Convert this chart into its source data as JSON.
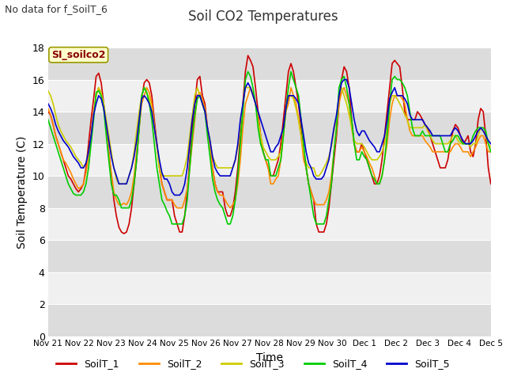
{
  "title": "Soil CO2 Temperatures",
  "subtitle": "No data for f_SoilT_6",
  "xlabel": "Time",
  "ylabel": "Soil Temperature (C)",
  "annotation": "SI_soilco2",
  "ylim": [
    0,
    18
  ],
  "yticks": [
    0,
    2,
    4,
    6,
    8,
    10,
    12,
    14,
    16,
    18
  ],
  "xtick_labels": [
    "Nov 21",
    "Nov 22",
    "Nov 23",
    "Nov 24",
    "Nov 25",
    "Nov 26",
    "Nov 27",
    "Nov 28",
    "Nov 29",
    "Nov 30",
    "Dec 1",
    "Dec 2",
    "Dec 3",
    "Dec 4",
    "Dec 5"
  ],
  "series_colors": {
    "SoilT_1": "#cc0000",
    "SoilT_2": "#ff8c00",
    "SoilT_3": "#cccc00",
    "SoilT_4": "#00cc00",
    "SoilT_5": "#0000cc"
  },
  "background_color": "#ffffff",
  "plot_bg_light": "#f0f0f0",
  "plot_bg_dark": "#dcdcdc",
  "grid_color": "#ffffff",
  "band_count": 9,
  "SoilT_1": [
    14.0,
    13.8,
    13.2,
    12.5,
    12.0,
    11.5,
    11.0,
    10.5,
    10.0,
    9.8,
    9.5,
    9.2,
    9.0,
    9.2,
    9.5,
    10.5,
    12.0,
    13.5,
    14.8,
    16.2,
    16.4,
    15.8,
    14.5,
    13.0,
    11.5,
    10.0,
    8.5,
    7.5,
    6.8,
    6.5,
    6.4,
    6.5,
    7.0,
    8.0,
    9.5,
    11.0,
    13.0,
    14.8,
    15.8,
    16.0,
    15.8,
    15.0,
    13.5,
    12.0,
    10.5,
    9.5,
    9.0,
    8.5,
    8.5,
    8.5,
    7.5,
    7.0,
    6.5,
    6.5,
    7.5,
    9.0,
    11.0,
    13.0,
    14.5,
    16.0,
    16.2,
    15.0,
    14.5,
    13.0,
    12.0,
    10.5,
    9.5,
    9.0,
    9.0,
    9.0,
    8.0,
    7.5,
    7.5,
    8.0,
    9.0,
    10.5,
    12.5,
    14.5,
    16.5,
    17.5,
    17.2,
    16.8,
    15.5,
    14.0,
    12.5,
    11.5,
    11.0,
    10.5,
    10.0,
    10.0,
    10.5,
    11.0,
    12.0,
    13.5,
    15.0,
    16.5,
    17.0,
    16.5,
    15.5,
    14.5,
    13.0,
    11.5,
    10.5,
    9.5,
    9.0,
    8.5,
    7.0,
    6.5,
    6.5,
    6.5,
    7.0,
    8.0,
    9.5,
    11.0,
    12.5,
    14.5,
    16.0,
    16.8,
    16.5,
    15.5,
    13.5,
    12.0,
    11.5,
    11.5,
    12.0,
    11.5,
    11.0,
    10.5,
    10.0,
    9.5,
    9.5,
    10.0,
    11.0,
    12.5,
    14.0,
    15.5,
    17.0,
    17.2,
    17.0,
    16.8,
    15.5,
    14.0,
    13.5,
    13.5,
    13.5,
    13.5,
    14.0,
    13.8,
    13.5,
    13.2,
    13.0,
    12.5,
    12.0,
    11.5,
    11.0,
    10.5,
    10.5,
    10.5,
    11.0,
    12.0,
    12.8,
    13.2,
    13.0,
    12.5,
    12.0,
    12.2,
    12.5,
    11.5,
    11.2,
    12.0,
    13.5,
    14.2,
    14.0,
    12.5,
    10.5,
    9.5
  ],
  "SoilT_2": [
    14.2,
    13.8,
    13.2,
    12.5,
    12.0,
    11.5,
    11.0,
    10.8,
    10.5,
    10.2,
    9.8,
    9.5,
    9.2,
    9.3,
    9.5,
    10.2,
    11.2,
    12.5,
    14.0,
    15.0,
    15.5,
    15.0,
    14.2,
    13.0,
    11.5,
    10.2,
    9.0,
    8.5,
    8.2,
    8.2,
    8.3,
    8.2,
    8.5,
    9.0,
    10.0,
    11.5,
    13.0,
    14.5,
    15.0,
    15.5,
    15.2,
    14.5,
    13.2,
    12.0,
    10.5,
    9.5,
    9.0,
    8.5,
    8.5,
    8.5,
    8.2,
    8.0,
    8.0,
    8.0,
    8.5,
    9.2,
    10.5,
    12.0,
    13.5,
    15.0,
    15.2,
    14.8,
    14.2,
    13.0,
    12.0,
    10.5,
    9.5,
    9.0,
    8.8,
    8.8,
    8.5,
    8.2,
    8.0,
    8.2,
    8.5,
    9.5,
    11.0,
    13.0,
    14.5,
    15.0,
    15.5,
    15.0,
    14.5,
    13.5,
    12.5,
    11.5,
    11.0,
    10.5,
    9.5,
    9.5,
    9.8,
    10.0,
    11.0,
    12.5,
    14.0,
    14.5,
    15.5,
    15.0,
    14.5,
    13.5,
    12.5,
    11.0,
    10.5,
    9.5,
    9.0,
    8.5,
    8.2,
    8.2,
    8.2,
    8.2,
    8.5,
    9.0,
    10.0,
    11.5,
    12.8,
    14.5,
    15.2,
    15.5,
    15.0,
    14.5,
    13.0,
    12.0,
    11.5,
    11.5,
    11.8,
    11.5,
    11.2,
    10.8,
    10.5,
    10.0,
    9.5,
    9.5,
    10.0,
    11.0,
    12.0,
    13.5,
    14.5,
    15.0,
    15.0,
    15.0,
    14.8,
    14.5,
    13.5,
    12.8,
    12.5,
    12.5,
    12.5,
    12.5,
    12.5,
    12.2,
    12.0,
    11.8,
    11.5,
    11.5,
    11.5,
    11.5,
    11.5,
    11.5,
    11.5,
    11.5,
    11.8,
    12.0,
    12.0,
    11.8,
    11.5,
    11.5,
    11.5,
    11.2,
    11.5,
    11.8,
    12.2,
    12.5,
    12.5,
    12.0,
    11.5,
    11.5
  ],
  "SoilT_3": [
    15.3,
    15.0,
    14.5,
    13.8,
    13.2,
    12.8,
    12.5,
    12.2,
    12.0,
    11.8,
    11.5,
    11.2,
    11.0,
    10.8,
    10.5,
    10.8,
    11.5,
    12.5,
    13.8,
    15.0,
    15.5,
    15.2,
    14.5,
    13.5,
    12.5,
    11.5,
    10.5,
    9.8,
    9.5,
    9.5,
    9.5,
    9.5,
    10.0,
    10.5,
    11.5,
    12.8,
    14.0,
    15.0,
    15.5,
    15.2,
    14.8,
    14.2,
    13.0,
    11.8,
    10.5,
    10.0,
    10.0,
    10.0,
    10.0,
    10.0,
    10.0,
    10.0,
    10.0,
    10.0,
    10.5,
    11.2,
    12.5,
    13.8,
    15.0,
    15.5,
    15.0,
    14.5,
    14.0,
    13.0,
    12.2,
    11.2,
    10.8,
    10.5,
    10.5,
    10.5,
    10.5,
    10.5,
    10.5,
    10.5,
    11.0,
    11.8,
    13.0,
    14.5,
    15.5,
    15.5,
    15.5,
    15.2,
    14.5,
    13.5,
    12.5,
    11.8,
    11.5,
    11.2,
    11.0,
    11.0,
    11.0,
    11.2,
    11.5,
    12.5,
    14.0,
    15.0,
    15.0,
    14.8,
    14.2,
    13.5,
    12.5,
    11.5,
    10.8,
    10.5,
    10.5,
    10.5,
    10.0,
    10.0,
    10.2,
    10.5,
    10.8,
    11.2,
    11.8,
    12.8,
    13.5,
    15.0,
    15.5,
    15.0,
    14.5,
    13.8,
    13.0,
    12.2,
    12.0,
    12.0,
    12.0,
    11.8,
    11.5,
    11.2,
    11.0,
    11.0,
    11.0,
    11.2,
    11.5,
    12.0,
    13.0,
    14.5,
    15.0,
    15.0,
    14.8,
    14.5,
    14.2,
    13.8,
    13.5,
    13.0,
    13.0,
    13.0,
    13.0,
    13.0,
    13.0,
    13.2,
    12.8,
    12.5,
    12.2,
    12.0,
    12.0,
    12.0,
    12.0,
    12.0,
    12.0,
    12.2,
    12.5,
    12.5,
    12.2,
    12.0,
    12.0,
    12.0,
    12.0,
    11.8,
    12.0,
    12.0,
    12.5,
    13.0,
    12.8,
    12.5,
    12.0,
    11.8
  ],
  "SoilT_4": [
    13.5,
    13.0,
    12.5,
    12.0,
    11.5,
    11.0,
    10.5,
    10.0,
    9.5,
    9.2,
    8.9,
    8.8,
    8.8,
    8.8,
    9.0,
    9.5,
    10.5,
    12.0,
    13.5,
    15.2,
    15.3,
    15.0,
    14.2,
    12.5,
    11.0,
    9.5,
    8.8,
    8.8,
    8.5,
    8.0,
    8.0,
    8.0,
    8.0,
    8.5,
    9.5,
    11.0,
    13.0,
    15.0,
    15.5,
    15.2,
    14.5,
    13.5,
    12.0,
    10.5,
    9.5,
    8.5,
    8.2,
    7.8,
    7.5,
    7.0,
    7.0,
    7.0,
    7.0,
    7.0,
    7.5,
    8.5,
    10.5,
    12.5,
    13.8,
    14.8,
    15.0,
    14.5,
    14.0,
    12.5,
    11.2,
    9.8,
    9.0,
    8.5,
    8.2,
    8.0,
    7.5,
    7.0,
    7.0,
    7.5,
    8.5,
    10.0,
    12.0,
    14.0,
    16.0,
    16.5,
    16.2,
    15.5,
    14.5,
    13.0,
    12.0,
    11.5,
    11.0,
    11.0,
    10.0,
    10.0,
    10.0,
    10.5,
    11.0,
    12.5,
    14.2,
    15.5,
    16.5,
    16.0,
    15.5,
    15.0,
    13.5,
    12.0,
    10.5,
    9.5,
    8.5,
    7.5,
    7.0,
    7.0,
    7.0,
    7.0,
    7.5,
    8.5,
    9.5,
    11.5,
    13.0,
    15.5,
    16.0,
    16.2,
    15.5,
    14.5,
    13.5,
    12.0,
    11.0,
    11.0,
    11.5,
    11.2,
    11.0,
    10.5,
    10.0,
    9.8,
    9.5,
    9.5,
    10.0,
    11.0,
    12.5,
    14.5,
    16.0,
    16.2,
    16.0,
    16.0,
    15.8,
    15.5,
    15.0,
    14.0,
    13.0,
    12.5,
    12.5,
    12.5,
    12.8,
    12.5,
    12.5,
    12.5,
    12.5,
    12.5,
    12.5,
    12.5,
    12.0,
    11.5,
    11.5,
    12.0,
    12.2,
    12.5,
    12.5,
    12.2,
    12.0,
    12.0,
    12.0,
    12.0,
    12.5,
    12.8,
    13.0,
    13.0,
    13.0,
    12.8,
    12.0,
    11.5
  ],
  "SoilT_5": [
    14.5,
    14.2,
    13.8,
    13.2,
    12.8,
    12.5,
    12.2,
    12.0,
    11.8,
    11.5,
    11.2,
    11.0,
    10.8,
    10.5,
    10.5,
    10.8,
    11.5,
    12.5,
    13.8,
    14.5,
    15.0,
    14.8,
    14.2,
    13.2,
    12.2,
    11.2,
    10.5,
    10.0,
    9.5,
    9.5,
    9.5,
    9.5,
    10.0,
    10.5,
    11.2,
    12.2,
    13.5,
    14.8,
    15.0,
    14.8,
    14.5,
    14.0,
    13.0,
    12.0,
    11.0,
    10.2,
    9.8,
    9.8,
    9.5,
    9.0,
    8.8,
    8.8,
    8.8,
    9.0,
    9.5,
    10.5,
    12.0,
    13.5,
    14.5,
    15.0,
    15.0,
    14.5,
    14.0,
    13.0,
    12.2,
    11.2,
    10.5,
    10.2,
    10.0,
    10.0,
    10.0,
    10.0,
    10.0,
    10.5,
    11.0,
    12.0,
    13.5,
    14.5,
    15.5,
    15.8,
    15.5,
    15.0,
    14.5,
    14.0,
    13.5,
    13.0,
    12.5,
    12.0,
    11.5,
    11.5,
    11.8,
    12.0,
    12.5,
    13.0,
    14.2,
    15.0,
    15.0,
    15.0,
    14.8,
    14.5,
    13.5,
    12.5,
    11.5,
    10.8,
    10.5,
    10.0,
    9.8,
    9.8,
    9.8,
    10.0,
    10.5,
    11.0,
    12.0,
    13.0,
    13.8,
    15.0,
    15.8,
    16.0,
    16.0,
    15.5,
    14.5,
    13.5,
    12.8,
    12.5,
    12.8,
    12.8,
    12.5,
    12.2,
    12.0,
    11.8,
    11.5,
    11.5,
    12.0,
    12.5,
    13.5,
    14.8,
    15.2,
    15.5,
    15.0,
    15.0,
    15.0,
    14.8,
    14.5,
    13.8,
    13.5,
    13.5,
    13.5,
    13.5,
    13.5,
    13.2,
    13.0,
    12.8,
    12.5,
    12.5,
    12.5,
    12.5,
    12.5,
    12.5,
    12.5,
    12.5,
    12.8,
    13.0,
    12.8,
    12.5,
    12.2,
    12.0,
    12.0,
    12.0,
    12.2,
    12.5,
    12.8,
    13.0,
    12.8,
    12.5,
    12.2,
    12.0
  ]
}
